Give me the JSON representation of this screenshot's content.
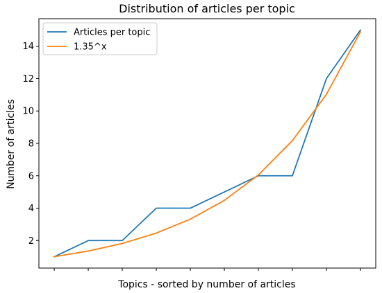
{
  "chart_data": {
    "type": "line",
    "title": "Distribution of articles per topic",
    "xlabel": "Topics - sorted by number of articles",
    "ylabel": "Number of articles",
    "x": [
      0,
      1,
      2,
      3,
      4,
      5,
      6,
      7,
      8,
      9
    ],
    "series": [
      {
        "name": "Articles per topic",
        "color": "#1f77b4",
        "values": [
          1,
          2,
          2,
          4,
          4,
          5,
          6,
          6,
          12,
          15
        ]
      },
      {
        "name": "1.35^x",
        "color": "#ff7f0e",
        "values": [
          1,
          1.35,
          1.82,
          2.46,
          3.32,
          4.48,
          6.05,
          8.17,
          11.03,
          14.89
        ]
      }
    ],
    "xlim": [
      -0.45,
      9.45
    ],
    "ylim": [
      0.3,
      15.7
    ],
    "yticks": [
      "2",
      "4",
      "6",
      "8",
      "10",
      "12",
      "14"
    ],
    "xtick_labels": "none",
    "grid": false,
    "legend": "upper-left"
  }
}
